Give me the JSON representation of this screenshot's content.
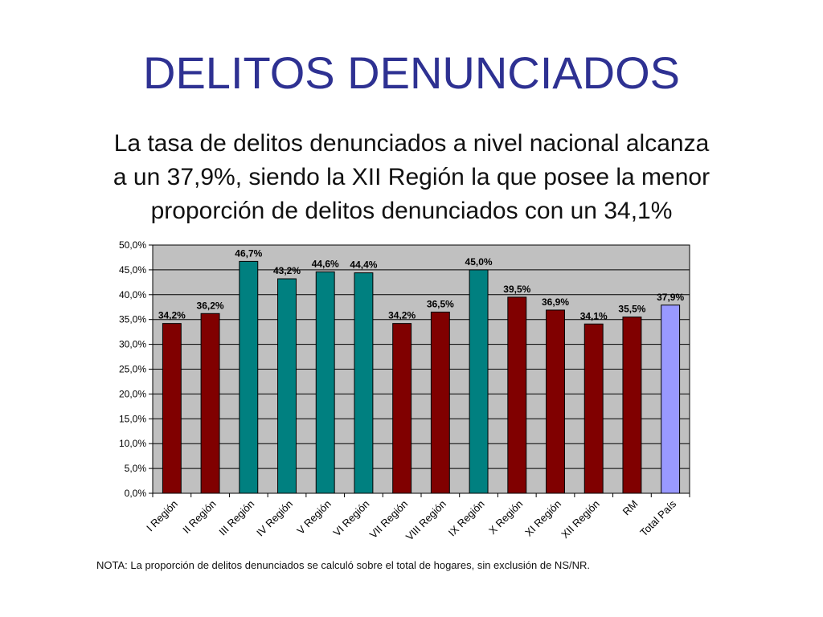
{
  "slide": {
    "title": "DELITOS DENUNCIADOS",
    "subtitle_lines": [
      "La tasa de delitos denunciados a nivel nacional alcanza",
      "a un 37,9%, siendo la XII Región la que posee la menor",
      "proporción de delitos denunciados con un 34,1%"
    ],
    "note": "NOTA: La proporción de delitos denunciados se calculó sobre el total de hogares, sin exclusión de NS/NR."
  },
  "chart_data": {
    "type": "bar",
    "categories": [
      "I Región",
      "II Región",
      "III Región",
      "IV Región",
      "V Región",
      "VI Región",
      "VII Región",
      "VIII Región",
      "IX Región",
      "X Región",
      "XI Región",
      "XII Región",
      "RM",
      "Total País"
    ],
    "values": [
      34.2,
      36.2,
      46.7,
      43.2,
      44.6,
      44.4,
      34.2,
      36.5,
      45.0,
      39.5,
      36.9,
      34.1,
      35.5,
      37.9
    ],
    "value_labels": [
      "34,2%",
      "36,2%",
      "46,7%",
      "43,2%",
      "44,6%",
      "44,4%",
      "34,2%",
      "36,5%",
      "45,0%",
      "39,5%",
      "36,9%",
      "34,1%",
      "35,5%",
      "37,9%"
    ],
    "bar_colors": [
      "#800000",
      "#800000",
      "#008080",
      "#008080",
      "#008080",
      "#008080",
      "#800000",
      "#800000",
      "#008080",
      "#800000",
      "#800000",
      "#800000",
      "#800000",
      "#9999ff"
    ],
    "yticks": [
      "0,0%",
      "5,0%",
      "10,0%",
      "15,0%",
      "20,0%",
      "25,0%",
      "30,0%",
      "35,0%",
      "40,0%",
      "45,0%",
      "50,0%"
    ],
    "ylim": [
      0,
      50
    ],
    "grid": true,
    "plot_background": "#c0c0c0",
    "xlabel": "",
    "ylabel": ""
  }
}
